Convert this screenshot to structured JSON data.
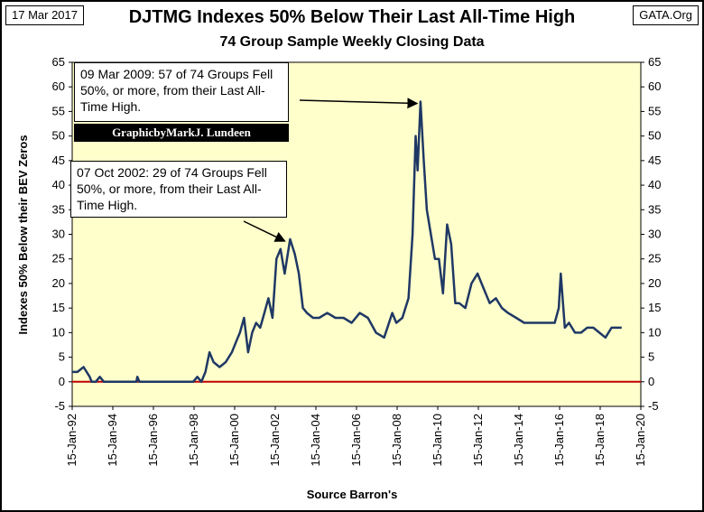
{
  "header": {
    "date": "17 Mar 2017",
    "source": "GATA.Org",
    "title": "DJTMG Indexes 50% Below Their Last All-Time High",
    "subtitle": "74 Group Sample Weekly Closing Data"
  },
  "credit": "GraphicbyMarkJ. Lundeen",
  "annotations": [
    {
      "id": "2009",
      "text": "09 Mar 2009: 57 of 74 Groups Fell 50%, or more, from their Last All-Time High.",
      "x": 2009.19,
      "y": 57
    },
    {
      "id": "2002",
      "text": "07 Oct 2002: 29 of 74 Groups Fell 50%, or more, from their Last All-Time High.",
      "x": 2002.77,
      "y": 29
    }
  ],
  "colors": {
    "series": "#1f3864",
    "zero_line": "#c00000",
    "plot_bg": "#ffffcc"
  },
  "chart_data": {
    "type": "line",
    "title": "DJTMG Indexes 50% Below Their Last All-Time High",
    "xlabel": "Source Barron's",
    "ylabel": "Indexes 50% Below their BEV Zeros",
    "ylim": [
      -5,
      65
    ],
    "xlim": [
      "15-Jan-92",
      "15-Jan-20"
    ],
    "y_ticks": [
      -5,
      0,
      5,
      10,
      15,
      20,
      25,
      30,
      35,
      40,
      45,
      50,
      55,
      60,
      65
    ],
    "x_ticks": [
      "15-Jan-92",
      "15-Jan-94",
      "15-Jan-96",
      "15-Jan-98",
      "15-Jan-00",
      "15-Jan-02",
      "15-Jan-04",
      "15-Jan-06",
      "15-Jan-08",
      "15-Jan-10",
      "15-Jan-12",
      "15-Jan-14",
      "15-Jan-16",
      "15-Jan-18",
      "15-Jan-20"
    ],
    "grid": false,
    "legend": "none",
    "series": [
      {
        "x": [
          1992.04,
          1992.3,
          1992.6,
          1992.9,
          1993.0,
          1993.2,
          1993.4,
          1993.6,
          1994.5,
          1995.2,
          1995.25,
          1995.35,
          1996.5,
          1997.7,
          1998.0,
          1998.2,
          1998.4,
          1998.6,
          1998.8,
          1999.0,
          1999.3,
          1999.6,
          1999.9,
          2000.1,
          2000.3,
          2000.5,
          2000.7,
          2000.9,
          2001.1,
          2001.3,
          2001.5,
          2001.7,
          2001.9,
          2002.1,
          2002.3,
          2002.5,
          2002.77,
          2003.0,
          2003.2,
          2003.4,
          2003.6,
          2003.9,
          2004.2,
          2004.6,
          2005.0,
          2005.4,
          2005.8,
          2006.2,
          2006.6,
          2007.0,
          2007.4,
          2007.8,
          2008.0,
          2008.3,
          2008.6,
          2008.8,
          2008.95,
          2009.05,
          2009.19,
          2009.35,
          2009.5,
          2009.7,
          2009.9,
          2010.1,
          2010.3,
          2010.5,
          2010.7,
          2010.9,
          2011.1,
          2011.4,
          2011.7,
          2012.0,
          2012.3,
          2012.6,
          2012.9,
          2013.2,
          2013.5,
          2013.9,
          2014.3,
          2014.7,
          2015.1,
          2015.5,
          2015.8,
          2016.0,
          2016.1,
          2016.3,
          2016.5,
          2016.8,
          2017.1,
          2017.4,
          2017.7,
          2018.0,
          2018.3,
          2018.6,
          2018.9,
          2019.1
        ],
        "values": [
          2,
          2,
          3,
          1,
          0,
          0,
          1,
          0,
          0,
          0,
          1,
          0,
          0,
          0,
          0,
          1,
          0,
          2,
          6,
          4,
          3,
          4,
          6,
          8,
          10,
          13,
          6,
          10,
          12,
          11,
          14,
          17,
          13,
          25,
          27,
          22,
          29,
          26,
          22,
          15,
          14,
          13,
          13,
          14,
          13,
          13,
          12,
          14,
          13,
          10,
          9,
          14,
          12,
          13,
          17,
          30,
          50,
          43,
          57,
          45,
          35,
          30,
          25,
          25,
          18,
          32,
          28,
          16,
          16,
          15,
          20,
          22,
          19,
          16,
          17,
          15,
          14,
          13,
          12,
          12,
          12,
          12,
          12,
          15,
          22,
          11,
          12,
          10,
          10,
          11,
          11,
          10,
          9,
          11,
          11,
          11
        ]
      }
    ]
  }
}
